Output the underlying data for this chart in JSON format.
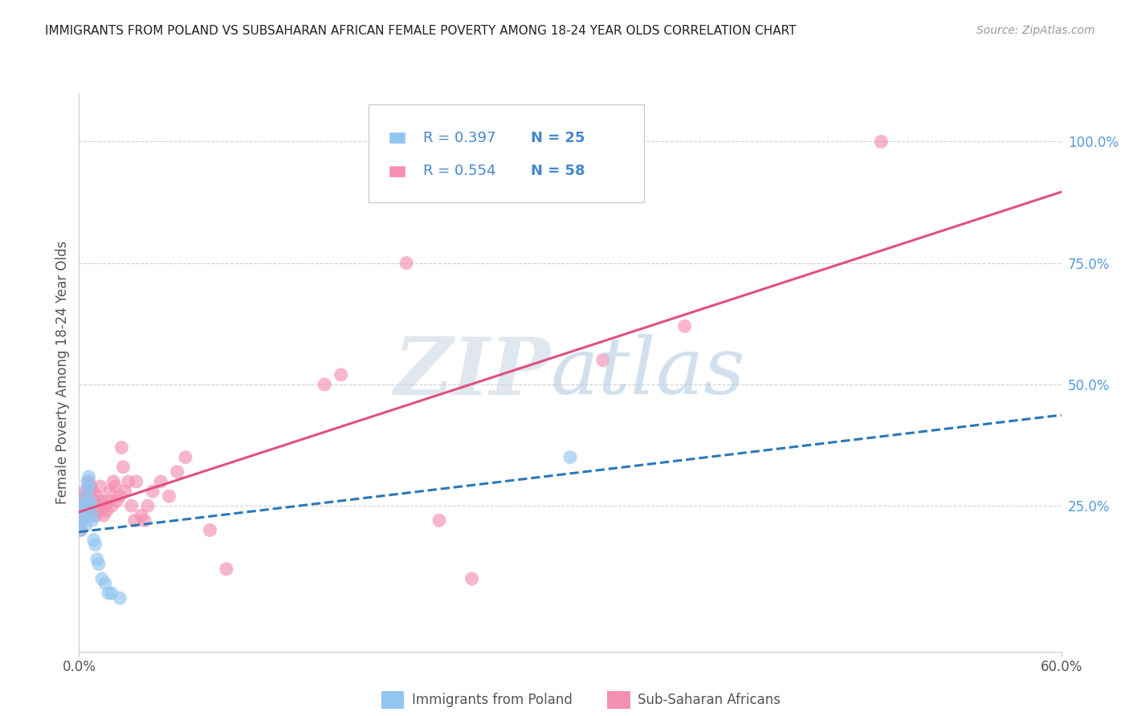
{
  "title": "IMMIGRANTS FROM POLAND VS SUBSAHARAN AFRICAN FEMALE POVERTY AMONG 18-24 YEAR OLDS CORRELATION CHART",
  "source": "Source: ZipAtlas.com",
  "ylabel": "Female Poverty Among 18-24 Year Olds",
  "ytick_labels": [
    "100.0%",
    "75.0%",
    "50.0%",
    "25.0%"
  ],
  "ytick_values": [
    1.0,
    0.75,
    0.5,
    0.25
  ],
  "xlim": [
    0.0,
    0.6
  ],
  "ylim": [
    -0.05,
    1.1
  ],
  "legend_r1": "R = 0.397",
  "legend_n1": "N = 25",
  "legend_r2": "R = 0.554",
  "legend_n2": "N = 58",
  "legend_label_1": "Immigrants from Poland",
  "legend_label_2": "Sub-Saharan Africans",
  "poland_color": "#92c5f0",
  "africa_color": "#f48fb1",
  "poland_scatter": [
    [
      0.001,
      0.2
    ],
    [
      0.002,
      0.22
    ],
    [
      0.002,
      0.25
    ],
    [
      0.003,
      0.24
    ],
    [
      0.003,
      0.26
    ],
    [
      0.004,
      0.23
    ],
    [
      0.004,
      0.21
    ],
    [
      0.005,
      0.28
    ],
    [
      0.005,
      0.3
    ],
    [
      0.006,
      0.31
    ],
    [
      0.006,
      0.29
    ],
    [
      0.007,
      0.26
    ],
    [
      0.007,
      0.25
    ],
    [
      0.008,
      0.23
    ],
    [
      0.008,
      0.22
    ],
    [
      0.009,
      0.18
    ],
    [
      0.01,
      0.17
    ],
    [
      0.011,
      0.14
    ],
    [
      0.012,
      0.13
    ],
    [
      0.014,
      0.1
    ],
    [
      0.016,
      0.09
    ],
    [
      0.018,
      0.07
    ],
    [
      0.02,
      0.07
    ],
    [
      0.025,
      0.06
    ],
    [
      0.3,
      0.35
    ]
  ],
  "africa_scatter": [
    [
      0.001,
      0.2
    ],
    [
      0.001,
      0.24
    ],
    [
      0.002,
      0.22
    ],
    [
      0.002,
      0.26
    ],
    [
      0.003,
      0.25
    ],
    [
      0.003,
      0.28
    ],
    [
      0.004,
      0.27
    ],
    [
      0.004,
      0.23
    ],
    [
      0.005,
      0.26
    ],
    [
      0.005,
      0.24
    ],
    [
      0.006,
      0.3
    ],
    [
      0.006,
      0.27
    ],
    [
      0.007,
      0.29
    ],
    [
      0.007,
      0.25
    ],
    [
      0.008,
      0.28
    ],
    [
      0.008,
      0.24
    ],
    [
      0.009,
      0.26
    ],
    [
      0.01,
      0.25
    ],
    [
      0.01,
      0.23
    ],
    [
      0.011,
      0.27
    ],
    [
      0.012,
      0.24
    ],
    [
      0.013,
      0.29
    ],
    [
      0.014,
      0.26
    ],
    [
      0.015,
      0.23
    ],
    [
      0.016,
      0.25
    ],
    [
      0.017,
      0.24
    ],
    [
      0.018,
      0.26
    ],
    [
      0.019,
      0.28
    ],
    [
      0.02,
      0.25
    ],
    [
      0.021,
      0.3
    ],
    [
      0.022,
      0.29
    ],
    [
      0.023,
      0.26
    ],
    [
      0.025,
      0.27
    ],
    [
      0.026,
      0.37
    ],
    [
      0.027,
      0.33
    ],
    [
      0.028,
      0.28
    ],
    [
      0.03,
      0.3
    ],
    [
      0.032,
      0.25
    ],
    [
      0.034,
      0.22
    ],
    [
      0.035,
      0.3
    ],
    [
      0.038,
      0.23
    ],
    [
      0.04,
      0.22
    ],
    [
      0.042,
      0.25
    ],
    [
      0.045,
      0.28
    ],
    [
      0.05,
      0.3
    ],
    [
      0.055,
      0.27
    ],
    [
      0.06,
      0.32
    ],
    [
      0.065,
      0.35
    ],
    [
      0.08,
      0.2
    ],
    [
      0.09,
      0.12
    ],
    [
      0.15,
      0.5
    ],
    [
      0.16,
      0.52
    ],
    [
      0.2,
      0.75
    ],
    [
      0.22,
      0.22
    ],
    [
      0.24,
      0.1
    ],
    [
      0.32,
      0.55
    ],
    [
      0.37,
      0.62
    ],
    [
      0.49,
      1.0
    ]
  ],
  "poland_line_color": "#2979b8",
  "africa_line_color": "#e05080",
  "background_color": "#ffffff",
  "grid_color": "#d0d0d0",
  "title_color": "#222222",
  "axis_label_color": "#555555",
  "right_ytick_color": "#5599dd"
}
